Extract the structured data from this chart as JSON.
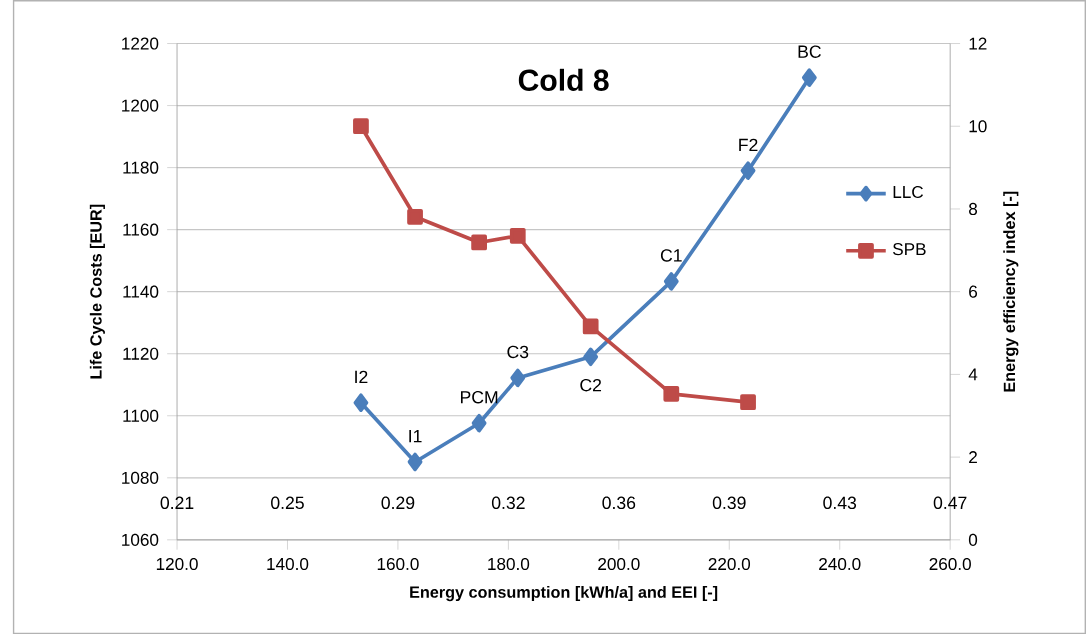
{
  "chart_data": {
    "type": "line",
    "title": "Cold 8",
    "xlabel": "Energy consumption [kWh/a] and EEI [-]",
    "ylabel": "Life Cycle Costs [EUR]",
    "y2label": "Energy efficiency index [-]",
    "x": [
      153.3,
      163.1,
      174.7,
      181.7,
      194.9,
      209.5,
      223.4,
      234.5
    ],
    "series": [
      {
        "name": "LLC",
        "color": "#4a7ebb",
        "marker": "diamond",
        "values": [
          1104.2,
          1085.1,
          1097.6,
          1112.2,
          1119,
          1143.3,
          1179,
          1209
        ]
      },
      {
        "name": "SPB",
        "color": "#be4b48",
        "marker": "square",
        "axis": "y2",
        "x": [
          153.3,
          163.1,
          174.7,
          181.7,
          194.9,
          209.5,
          223.4
        ],
        "values": [
          10.0,
          7.81,
          7.19,
          7.35,
          5.16,
          3.53,
          3.33
        ]
      }
    ],
    "annotations": [
      {
        "text": "I2",
        "x": 153.3,
        "y": 1104.2
      },
      {
        "text": "I1",
        "x": 163.1,
        "y": 1085.1
      },
      {
        "text": "PCM",
        "x": 174.7,
        "y": 1097.6
      },
      {
        "text": "C3",
        "x": 181.7,
        "y": 1112.2
      },
      {
        "text": "C2",
        "x": 194.9,
        "y": 1119
      },
      {
        "text": "C1",
        "x": 209.5,
        "y": 1143.3
      },
      {
        "text": "F2",
        "x": 223.4,
        "y": 1179
      },
      {
        "text": "BC",
        "x": 234.5,
        "y": 1209
      }
    ],
    "xlim": [
      120,
      260
    ],
    "xticks": [
      {
        "value": 120,
        "label": "120.0"
      },
      {
        "value": 140,
        "label": "140.0"
      },
      {
        "value": 160,
        "label": "160.0"
      },
      {
        "value": 180,
        "label": "180.0"
      },
      {
        "value": 200,
        "label": "200.0"
      },
      {
        "value": 220,
        "label": "220.0"
      },
      {
        "value": 240,
        "label": "240.0"
      },
      {
        "value": 260,
        "label": "260.0"
      }
    ],
    "ylim": [
      1060,
      1220
    ],
    "yticks": [
      1060,
      1080,
      1100,
      1120,
      1140,
      1160,
      1180,
      1200,
      1220
    ],
    "y2lim": [
      0,
      12
    ],
    "y2ticks": [
      0,
      2,
      4,
      6,
      8,
      10,
      12
    ],
    "x2lim": [
      0.214,
      0.466
    ],
    "x2ticks": [
      {
        "value": 0.214,
        "label": "0.21"
      },
      {
        "value": 0.25,
        "label": "0.25"
      },
      {
        "value": 0.286,
        "label": "0.29"
      },
      {
        "value": 0.322,
        "label": "0.32"
      },
      {
        "value": 0.358,
        "label": "0.36"
      },
      {
        "value": 0.394,
        "label": "0.39"
      },
      {
        "value": 0.43,
        "label": "0.43"
      },
      {
        "value": 0.466,
        "label": "0.47"
      }
    ],
    "grid": "y",
    "legend": "right"
  }
}
